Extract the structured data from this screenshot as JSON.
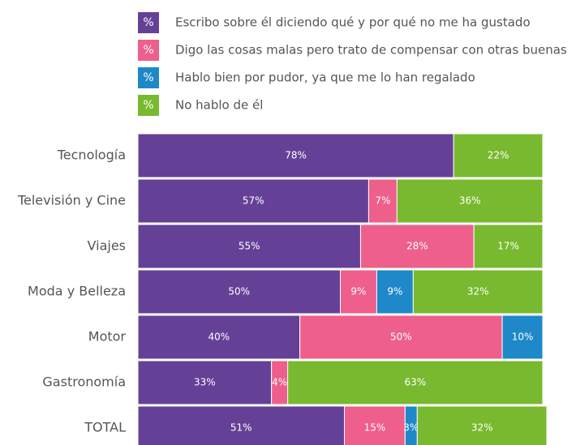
{
  "chart_data": {
    "type": "stacked-bar-horizontal",
    "legend_symbol": "%",
    "categories": [
      "Tecnología",
      "Televisión y Cine",
      "Viajes",
      "Moda y Belleza",
      "Motor",
      "Gastronomía",
      "TOTAL"
    ],
    "series": [
      {
        "name": "Escribo sobre él diciendo qué y por qué no me ha gustado",
        "color": "#644196",
        "values": [
          78,
          57,
          55,
          50,
          40,
          33,
          51
        ],
        "value_labels": [
          "78%",
          "57%",
          "55%",
          "50%",
          "40%",
          "33%",
          "51%"
        ]
      },
      {
        "name": "Digo las cosas malas pero trato de compensar con otras buenas",
        "color": "#ee5f8b",
        "values": [
          null,
          7,
          28,
          9,
          50,
          4,
          15
        ],
        "value_labels": [
          null,
          "7%",
          "28%",
          "9%",
          "50%",
          "4%",
          "15%"
        ]
      },
      {
        "name": "Hablo bien por pudor, ya que me lo han regalado",
        "color": "#1e88c8",
        "values": [
          null,
          null,
          null,
          9,
          10,
          null,
          3
        ],
        "value_labels": [
          null,
          null,
          null,
          "9%",
          "10%",
          null,
          "3%"
        ]
      },
      {
        "name": "No hablo de él",
        "color": "#79b92f",
        "values": [
          22,
          36,
          17,
          32,
          null,
          63,
          32
        ],
        "value_labels": [
          "22%",
          "36%",
          "17%",
          "32%",
          null,
          "63%",
          "32%"
        ]
      }
    ],
    "xlim": [
      0,
      100
    ]
  }
}
